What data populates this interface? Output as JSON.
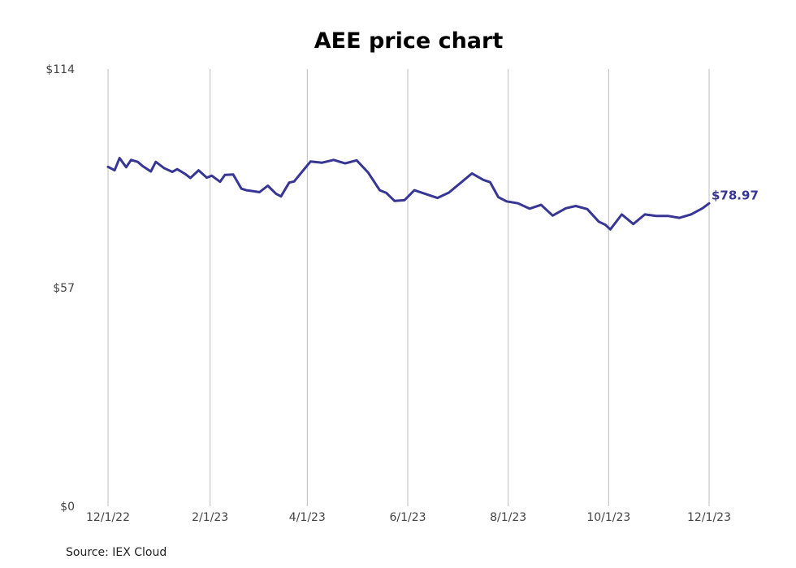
{
  "chart_data": {
    "type": "line",
    "title": "AEE price chart",
    "source": "Source: IEX Cloud",
    "y_ticks": [
      "$114",
      "$57",
      "$0"
    ],
    "ylim": [
      0,
      114
    ],
    "x_ticks": [
      "12/1/22",
      "2/1/23",
      "4/1/23",
      "6/1/23",
      "8/1/23",
      "10/1/23",
      "12/1/23"
    ],
    "last_value_label": "$78.97",
    "line_color": "#373695",
    "series": [
      {
        "x": [
          "2022-12-01",
          "2022-12-05",
          "2022-12-08",
          "2022-12-12",
          "2022-12-15",
          "2022-12-19",
          "2022-12-22",
          "2022-12-27",
          "2022-12-30",
          "2023-01-04",
          "2023-01-09",
          "2023-01-12",
          "2023-01-17",
          "2023-01-20",
          "2023-01-25",
          "2023-01-30",
          "2023-02-02",
          "2023-02-07",
          "2023-02-10",
          "2023-02-15",
          "2023-02-20",
          "2023-02-23",
          "2023-02-28",
          "2023-03-03",
          "2023-03-08",
          "2023-03-13",
          "2023-03-16",
          "2023-03-21",
          "2023-03-24",
          "2023-03-29",
          "2023-04-03",
          "2023-04-10",
          "2023-04-17",
          "2023-04-24",
          "2023-05-01",
          "2023-05-08",
          "2023-05-15",
          "2023-05-19",
          "2023-05-24",
          "2023-05-30",
          "2023-06-05",
          "2023-06-12",
          "2023-06-19",
          "2023-06-26",
          "2023-07-03",
          "2023-07-10",
          "2023-07-17",
          "2023-07-21",
          "2023-07-26",
          "2023-07-31",
          "2023-08-07",
          "2023-08-14",
          "2023-08-21",
          "2023-08-28",
          "2023-09-05",
          "2023-09-11",
          "2023-09-18",
          "2023-09-25",
          "2023-09-29",
          "2023-10-02",
          "2023-10-09",
          "2023-10-16",
          "2023-10-23",
          "2023-10-30",
          "2023-11-06",
          "2023-11-13",
          "2023-11-20",
          "2023-11-27",
          "2023-12-01"
        ],
        "values": [
          88.5,
          87.6,
          90.8,
          88.4,
          90.3,
          89.8,
          88.7,
          87.3,
          89.8,
          88.2,
          87.2,
          87.9,
          86.6,
          85.6,
          87.6,
          85.7,
          86.2,
          84.6,
          86.4,
          86.5,
          82.8,
          82.4,
          82.1,
          81.9,
          83.6,
          81.5,
          80.8,
          84.4,
          84.7,
          87.3,
          89.9,
          89.6,
          90.3,
          89.4,
          90.2,
          87.0,
          82.4,
          81.7,
          79.6,
          79.8,
          82.4,
          81.4,
          80.4,
          81.8,
          84.3,
          86.8,
          85.1,
          84.5,
          80.6,
          79.5,
          79.0,
          77.6,
          78.6,
          75.8,
          77.7,
          78.3,
          77.5,
          74.2,
          73.4,
          72.2,
          76.1,
          73.6,
          76.1,
          75.7,
          75.7,
          75.2,
          76.1,
          77.7,
          78.97
        ]
      }
    ]
  }
}
